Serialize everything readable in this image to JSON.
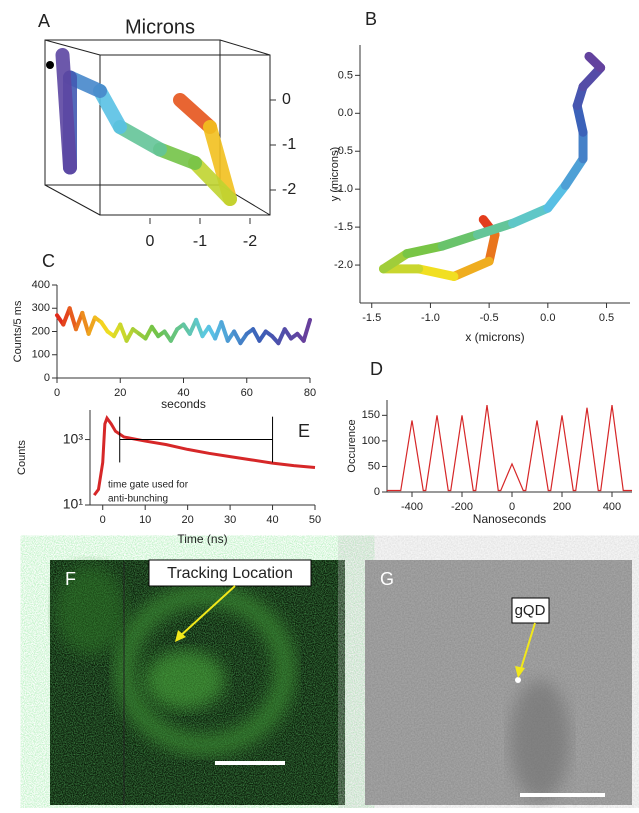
{
  "chart_data": [
    {
      "type": "trajectory3d",
      "panel": "A",
      "title": "Microns",
      "x": [
        -0.6,
        -1.2,
        -1.6,
        -0.9,
        -0.2,
        0.6,
        1.0,
        1.6,
        1.6,
        1.75
      ],
      "z": [
        0.0,
        -0.6,
        -2.2,
        -1.4,
        -1.1,
        -0.6,
        0.2,
        0.5,
        -1.5,
        1.0
      ],
      "xticks": [
        0,
        -1,
        -2
      ],
      "zticks": [
        0,
        -1,
        -2
      ],
      "colormap": [
        "#e0201b",
        "#f5e020",
        "#6cc24a",
        "#5bc8e8",
        "#3a5fb8",
        "#6a3d9a"
      ]
    },
    {
      "type": "line",
      "panel": "B",
      "xlabel": "x (microns)",
      "ylabel": "y (microns)",
      "x": [
        -0.55,
        -0.45,
        -0.5,
        -0.8,
        -1.1,
        -1.4,
        -1.2,
        -0.9,
        -0.6,
        -0.3,
        0.0,
        0.15,
        0.3,
        0.3,
        0.25,
        0.3,
        0.45,
        0.35
      ],
      "y": [
        -1.4,
        -1.6,
        -1.95,
        -2.15,
        -2.05,
        -2.05,
        -1.85,
        -1.75,
        -1.6,
        -1.45,
        -1.25,
        -0.95,
        -0.6,
        -0.25,
        0.1,
        0.35,
        0.6,
        0.75
      ],
      "xlim": [
        -1.6,
        0.7
      ],
      "ylim": [
        -2.5,
        0.9
      ],
      "xticks": [
        {
          "value": -1.5,
          "label": "-1.5"
        },
        {
          "value": -1,
          "label": "-1.0"
        },
        {
          "value": -0.5,
          "label": "-0.5"
        },
        {
          "value": 0,
          "label": "0.0"
        },
        {
          "value": 0.5,
          "label": "0.5"
        }
      ],
      "yticks": [
        {
          "value": 0.5,
          "label": "0.5"
        },
        {
          "value": 0,
          "label": "0.0"
        },
        {
          "value": -0.5,
          "label": "-0.5"
        },
        {
          "value": -1,
          "label": "-1.0"
        },
        {
          "value": -1.5,
          "label": "-1.5"
        },
        {
          "value": -2,
          "label": "-2.0"
        }
      ],
      "colormap": [
        "#e0201b",
        "#f5e020",
        "#6cc24a",
        "#5bc8e8",
        "#3a5fb8",
        "#6a3d9a"
      ]
    },
    {
      "type": "line",
      "panel": "C",
      "xlabel": "seconds",
      "ylabel": "Counts/5 ms",
      "x": [
        0,
        2,
        4,
        6,
        8,
        10,
        12,
        14,
        16,
        18,
        20,
        22,
        24,
        26,
        28,
        30,
        32,
        34,
        36,
        38,
        40,
        42,
        44,
        46,
        48,
        50,
        52,
        54,
        56,
        58,
        60,
        62,
        64,
        66,
        68,
        70,
        72,
        74,
        76,
        78,
        80
      ],
      "values": [
        270,
        230,
        300,
        210,
        280,
        190,
        260,
        240,
        200,
        180,
        230,
        160,
        210,
        190,
        170,
        220,
        180,
        200,
        160,
        210,
        230,
        190,
        250,
        180,
        220,
        170,
        240,
        160,
        200,
        150,
        190,
        210,
        160,
        200,
        180,
        150,
        210,
        170,
        190,
        160,
        250
      ],
      "xlim": [
        0,
        80
      ],
      "ylim": [
        0,
        400
      ],
      "xticks": [
        0,
        20,
        40,
        60,
        80
      ],
      "yticks": [
        0,
        100,
        200,
        300,
        400
      ],
      "colormap": [
        "#e0201b",
        "#f5e020",
        "#6cc24a",
        "#5bc8e8",
        "#3a5fb8",
        "#6a3d9a"
      ]
    },
    {
      "type": "line",
      "panel": "D",
      "xlabel": "Nanoseconds",
      "ylabel": "Occurence",
      "color": "#d62728",
      "x": [
        -500,
        -445,
        -400,
        -355,
        -345,
        -300,
        -255,
        -245,
        -200,
        -155,
        -145,
        -100,
        -55,
        -45,
        0,
        45,
        55,
        100,
        145,
        155,
        200,
        245,
        255,
        300,
        345,
        355,
        400,
        445,
        480
      ],
      "values": [
        3,
        3,
        140,
        3,
        3,
        150,
        3,
        3,
        150,
        3,
        3,
        170,
        3,
        3,
        55,
        3,
        3,
        140,
        3,
        3,
        150,
        3,
        3,
        165,
        3,
        3,
        170,
        3,
        3
      ],
      "xlim": [
        -500,
        480
      ],
      "ylim": [
        0,
        180
      ],
      "xticks": [
        -400,
        -200,
        0,
        200,
        400
      ],
      "yticks": [
        0,
        50,
        100,
        150
      ]
    },
    {
      "type": "line",
      "panel": "E",
      "xlabel": "Time (ns)",
      "ylabel": "Counts",
      "color": "#d62728",
      "log_y": true,
      "x": [
        -2,
        -1,
        0,
        0.5,
        1,
        2,
        3,
        5,
        10,
        15,
        20,
        25,
        30,
        35,
        40,
        45,
        50
      ],
      "values": [
        20,
        30,
        200,
        3000,
        4500,
        3000,
        1800,
        1200,
        900,
        700,
        500,
        380,
        300,
        240,
        190,
        160,
        140
      ],
      "xlim": [
        -3,
        50
      ],
      "ylim": [
        10,
        8000
      ],
      "xticks": [
        0,
        10,
        20,
        30,
        40,
        50
      ],
      "yticks": [
        {
          "value": 10,
          "label": "10¹"
        },
        {
          "value": 1000,
          "label": "10³"
        }
      ],
      "gate": {
        "start": 4,
        "end": 40,
        "level": 1000
      },
      "annotation": [
        "time gate used for",
        "anti-bunching"
      ]
    }
  ],
  "images": [
    {
      "panel": "F",
      "callout": "Tracking Location"
    },
    {
      "panel": "G",
      "callout": "gQD"
    }
  ]
}
